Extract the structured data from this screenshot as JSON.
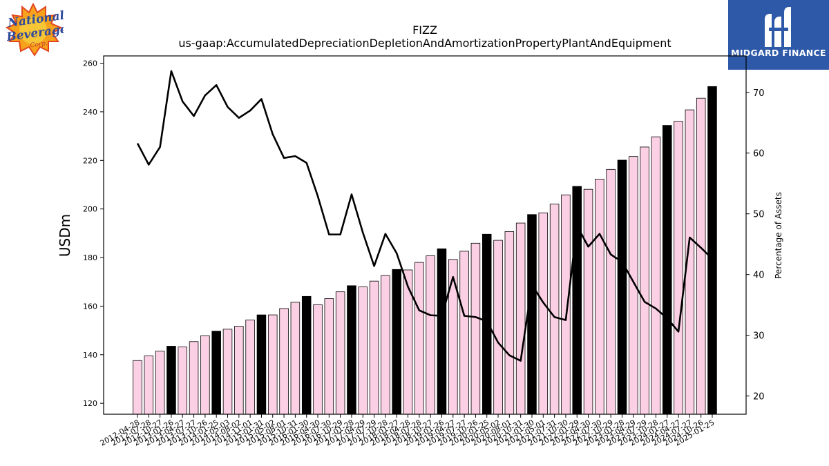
{
  "brand": {
    "left_logo_name": "National Beverage Corp.",
    "right_logo_text": "MIDGARD FINANCE",
    "right_logo_color": "#2d59a8"
  },
  "chart_data": {
    "type": "bar",
    "title": "FIZZ",
    "subtitle": "us-gaap:AccumulatedDepreciationDepletionAndAmortizationPropertyPlantAndEquipment",
    "ylabel": "USDm",
    "y2label": "Percentage of Assets",
    "ylim": [
      115.5,
      263
    ],
    "y2lim": [
      17,
      76
    ],
    "yticks": [
      120,
      140,
      160,
      180,
      200,
      220,
      240,
      260
    ],
    "y2ticks": [
      20,
      30,
      40,
      50,
      60,
      70
    ],
    "grid": false,
    "legend": "none",
    "bar_fill": "#fcd0e4",
    "bar_fill_highlight": "#000000",
    "line_color": "#000000",
    "categories": [
      "2012-04-28",
      "2012-07-28",
      "2012-10-27",
      "2013-01-26",
      "2013-04-27",
      "2013-07-27",
      "2013-10-26",
      "2014-01-25",
      "2014-05-03",
      "2014-08-02",
      "2014-11-01",
      "2015-01-31",
      "2015-05-02",
      "2015-08-01",
      "2015-10-31",
      "2016-01-30",
      "2016-04-30",
      "2016-07-30",
      "2016-10-29",
      "2017-01-28",
      "2017-04-29",
      "2017-07-29",
      "2017-10-28",
      "2018-01-27",
      "2018-04-28",
      "2018-07-28",
      "2018-10-27",
      "2019-01-26",
      "2019-04-27",
      "2019-07-27",
      "2019-10-26",
      "2020-01-25",
      "2020-05-02",
      "2020-08-01",
      "2020-10-31",
      "2021-01-30",
      "2021-05-01",
      "2021-07-31",
      "2021-10-30",
      "2022-01-29",
      "2022-04-30",
      "2022-07-30",
      "2022-10-29",
      "2023-01-28",
      "2023-04-29",
      "2023-07-29",
      "2023-10-28",
      "2024-01-27",
      "2024-04-27",
      "2024-07-27",
      "2024-10-26",
      "2025-01-25"
    ],
    "tick_labels": [
      "2012-04-28",
      "2012-07-28",
      "2012-10-27",
      "2013-01-26",
      "2013-04-27",
      "2013-07-27",
      "2013-10-26",
      "2014-01-25",
      "2014-05-03",
      "2014-08-02",
      "2014-11-01",
      "2015-01-31",
      "2015-05-02",
      "2015-08-01",
      "2015-10-31",
      "2016-01-30",
      "2016-04-30",
      "2016-07-30",
      "2016-10-29",
      "2017-01-28",
      "2017-04-29",
      "2017-07-29",
      "2017-10-28",
      "2018-01-27",
      "2018-04-28",
      "2018-07-28",
      "2018-10-27",
      "2019-01-26",
      "2019-04-27",
      "2019-07-27",
      "2019-10-26",
      "2020-01-25",
      "2020-05-02",
      "2020-08-01",
      "2020-10-31",
      "2021-01-30",
      "2021-05-01",
      "2021-07-31",
      "2021-10-30",
      "2022-01-29",
      "2022-04-30",
      "2022-07-30",
      "2022-10-29",
      "2023-01-28",
      "2023-04-29",
      "2023-07-29",
      "2023-10-28",
      "2024-01-27",
      "2024-04-27",
      "2024-07-27",
      "2024-10-26",
      "2025-01-25"
    ],
    "values": [
      137.6,
      139.5,
      141.5,
      143.5,
      143.2,
      145.4,
      147.8,
      149.7,
      150.5,
      151.7,
      154.3,
      156.4,
      156.4,
      159.0,
      161.6,
      164.0,
      160.6,
      163.1,
      165.9,
      168.4,
      167.9,
      170.3,
      172.6,
      175.1,
      174.9,
      178.0,
      180.7,
      183.6,
      179.2,
      182.6,
      185.9,
      189.6,
      187.1,
      190.7,
      194.2,
      197.7,
      198.4,
      202.0,
      205.8,
      209.3,
      208.1,
      212.3,
      216.3,
      220.1,
      221.6,
      225.5,
      229.7,
      234.4,
      236.1,
      240.8,
      245.6,
      250.4
    ],
    "highlight": [
      false,
      false,
      false,
      true,
      false,
      false,
      false,
      true,
      false,
      false,
      false,
      true,
      false,
      false,
      false,
      true,
      false,
      false,
      false,
      true,
      false,
      false,
      false,
      true,
      false,
      false,
      false,
      true,
      false,
      false,
      false,
      true,
      false,
      false,
      false,
      true,
      false,
      false,
      false,
      true,
      false,
      false,
      false,
      true,
      false,
      false,
      false,
      true,
      false,
      false,
      false,
      true
    ],
    "series": [
      {
        "axis": "right",
        "values": [
          61.6,
          58.1,
          61.0,
          73.5,
          68.5,
          66.1,
          69.5,
          71.2,
          67.6,
          65.8,
          67.0,
          68.9,
          63.1,
          59.2,
          59.5,
          58.4,
          52.9,
          46.6,
          46.6,
          53.2,
          46.9,
          41.4,
          46.7,
          43.5,
          38.0,
          34.1,
          33.3,
          33.2,
          39.6,
          33.2,
          33.0,
          32.3,
          28.8,
          26.7,
          25.8,
          38.3,
          35.4,
          33.0,
          32.5,
          48.0,
          44.6,
          46.7,
          43.3,
          42.1,
          38.8,
          35.5,
          34.4,
          32.8,
          30.6,
          46.1,
          44.4,
          42.6
        ]
      }
    ]
  }
}
